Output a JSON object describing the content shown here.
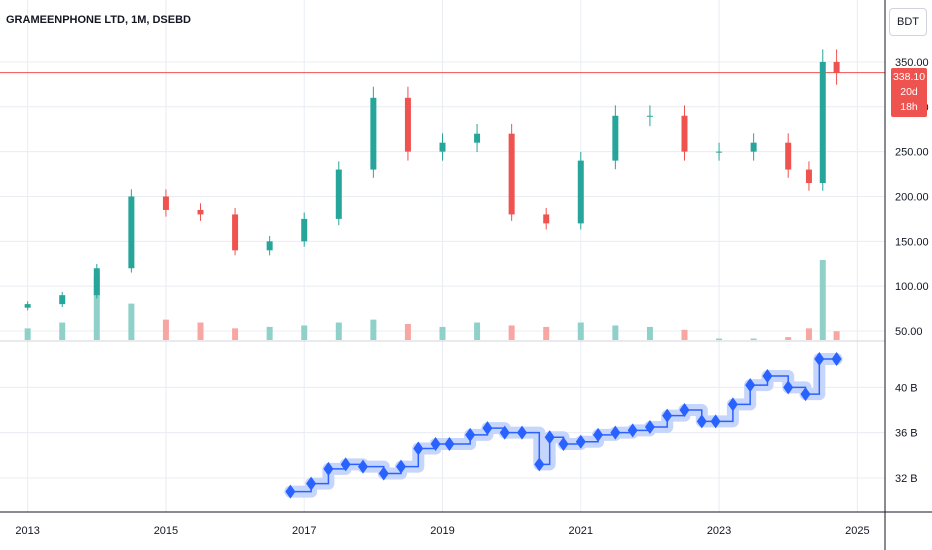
{
  "header": {
    "title": "GRAMEENPHONE LTD, 1M, DSEBD",
    "currency_button": "BDT",
    "last_price": "338.10",
    "countdown": "20d 18h"
  },
  "colors": {
    "up": "#26a69a",
    "down": "#ef5350",
    "volume_up": "#8fd1c8",
    "volume_down": "#f7a6a4",
    "indicator": "#2962ff",
    "indicator_glow": "#c5d5fb",
    "grid": "#e9ecf2",
    "price_line": "#ef5350"
  },
  "chart_data": [
    {
      "type": "candlestick",
      "pane": "price",
      "title": "",
      "ylim": [
        40,
        370
      ],
      "y_ticks": [
        "50.00",
        "100.00",
        "150.00",
        "200.00",
        "250.00",
        "300.00",
        "350.00"
      ],
      "x_ticks": [
        "2013",
        "2015",
        "2017",
        "2019",
        "2021",
        "2023",
        "2025"
      ],
      "xlim": [
        2012.6,
        2025.4
      ],
      "last_value": 338.1,
      "series": [
        {
          "name": "",
          "x": [
            2013.0,
            2013.5,
            2014.0,
            2014.5,
            2015.0,
            2015.5,
            2016.0,
            2016.5,
            2017.0,
            2017.5,
            2018.0,
            2018.5,
            2019.0,
            2019.5,
            2020.0,
            2020.5,
            2021.0,
            2021.5,
            2022.0,
            2022.5,
            2023.0,
            2023.5,
            2024.0,
            2024.3,
            2024.5,
            2024.7
          ],
          "close": [
            80,
            90,
            120,
            200,
            185,
            180,
            140,
            150,
            175,
            230,
            310,
            250,
            260,
            270,
            180,
            170,
            240,
            290,
            290,
            250,
            250,
            260,
            230,
            215,
            350,
            338.1
          ],
          "volume": [
            8,
            12,
            45,
            25,
            14,
            12,
            8,
            9,
            10,
            12,
            14,
            11,
            9,
            12,
            10,
            9,
            12,
            10,
            9,
            7,
            1,
            1,
            2,
            8,
            55,
            6
          ]
        }
      ]
    },
    {
      "type": "line",
      "pane": "indicator",
      "title": "",
      "step": true,
      "ylim": [
        29,
        44
      ],
      "y_ticks": [
        "32 B",
        "36 B",
        "40 B"
      ],
      "series": [
        {
          "name": "",
          "x": [
            2016.8,
            2017.1,
            2017.35,
            2017.6,
            2017.85,
            2018.15,
            2018.4,
            2018.65,
            2018.9,
            2019.1,
            2019.4,
            2019.65,
            2019.9,
            2020.15,
            2020.4,
            2020.55,
            2020.75,
            2021.0,
            2021.25,
            2021.5,
            2021.75,
            2022.0,
            2022.25,
            2022.5,
            2022.75,
            2022.95,
            2023.2,
            2023.45,
            2023.7,
            2024.0,
            2024.25,
            2024.45,
            2024.7
          ],
          "values": [
            30.8,
            31.5,
            32.8,
            33.2,
            33.0,
            32.4,
            33.0,
            34.6,
            35.0,
            35.0,
            35.8,
            36.4,
            36.0,
            36.0,
            33.2,
            35.6,
            35.0,
            35.2,
            35.8,
            36.0,
            36.2,
            36.5,
            37.5,
            38.0,
            37.0,
            37.0,
            38.5,
            40.2,
            41.0,
            40.0,
            39.4,
            42.5,
            42.5
          ]
        }
      ]
    }
  ]
}
